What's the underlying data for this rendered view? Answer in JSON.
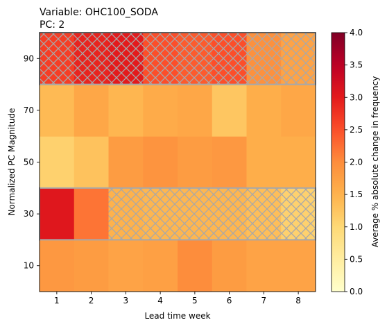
{
  "chart_data": {
    "type": "heatmap",
    "title_line1": "Variable: OHC100_SODA",
    "title_line2": "PC: 2",
    "xlabel": "Lead time week",
    "ylabel": "Normalized PC Magnitude",
    "x_categories": [
      "1",
      "2",
      "3",
      "4",
      "5",
      "6",
      "7",
      "8"
    ],
    "y_categories": [
      "10",
      "30",
      "50",
      "70",
      "90"
    ],
    "values": [
      [
        1.85,
        1.8,
        1.7,
        1.75,
        2.0,
        1.8,
        1.7,
        1.7
      ],
      [
        3.05,
        2.2,
        1.5,
        1.45,
        1.45,
        1.45,
        1.35,
        1.1
      ],
      [
        1.1,
        1.3,
        1.8,
        1.9,
        1.8,
        1.85,
        1.55,
        1.55
      ],
      [
        1.4,
        1.65,
        1.45,
        1.6,
        1.65,
        1.25,
        1.55,
        1.65
      ],
      [
        2.65,
        2.9,
        3.0,
        2.5,
        2.4,
        2.5,
        1.95,
        1.7
      ]
    ],
    "hatched": [
      [
        false,
        false,
        false,
        false,
        false,
        false,
        false,
        false
      ],
      [
        false,
        false,
        true,
        true,
        true,
        true,
        true,
        true
      ],
      [
        false,
        false,
        false,
        false,
        false,
        false,
        false,
        false
      ],
      [
        false,
        false,
        false,
        false,
        false,
        false,
        false,
        false
      ],
      [
        true,
        true,
        true,
        true,
        true,
        true,
        true,
        true
      ]
    ],
    "outlined_rows": [
      "30",
      "90"
    ],
    "colorbar": {
      "label": "Average % absolute change in frequency",
      "min": 0.0,
      "max": 4.0,
      "ticks": [
        "0.0",
        "0.5",
        "1.0",
        "1.5",
        "2.0",
        "2.5",
        "3.0",
        "3.5",
        "4.0"
      ],
      "colormap": "YlOrRd"
    },
    "hatch_color": "#a8a8a8"
  }
}
